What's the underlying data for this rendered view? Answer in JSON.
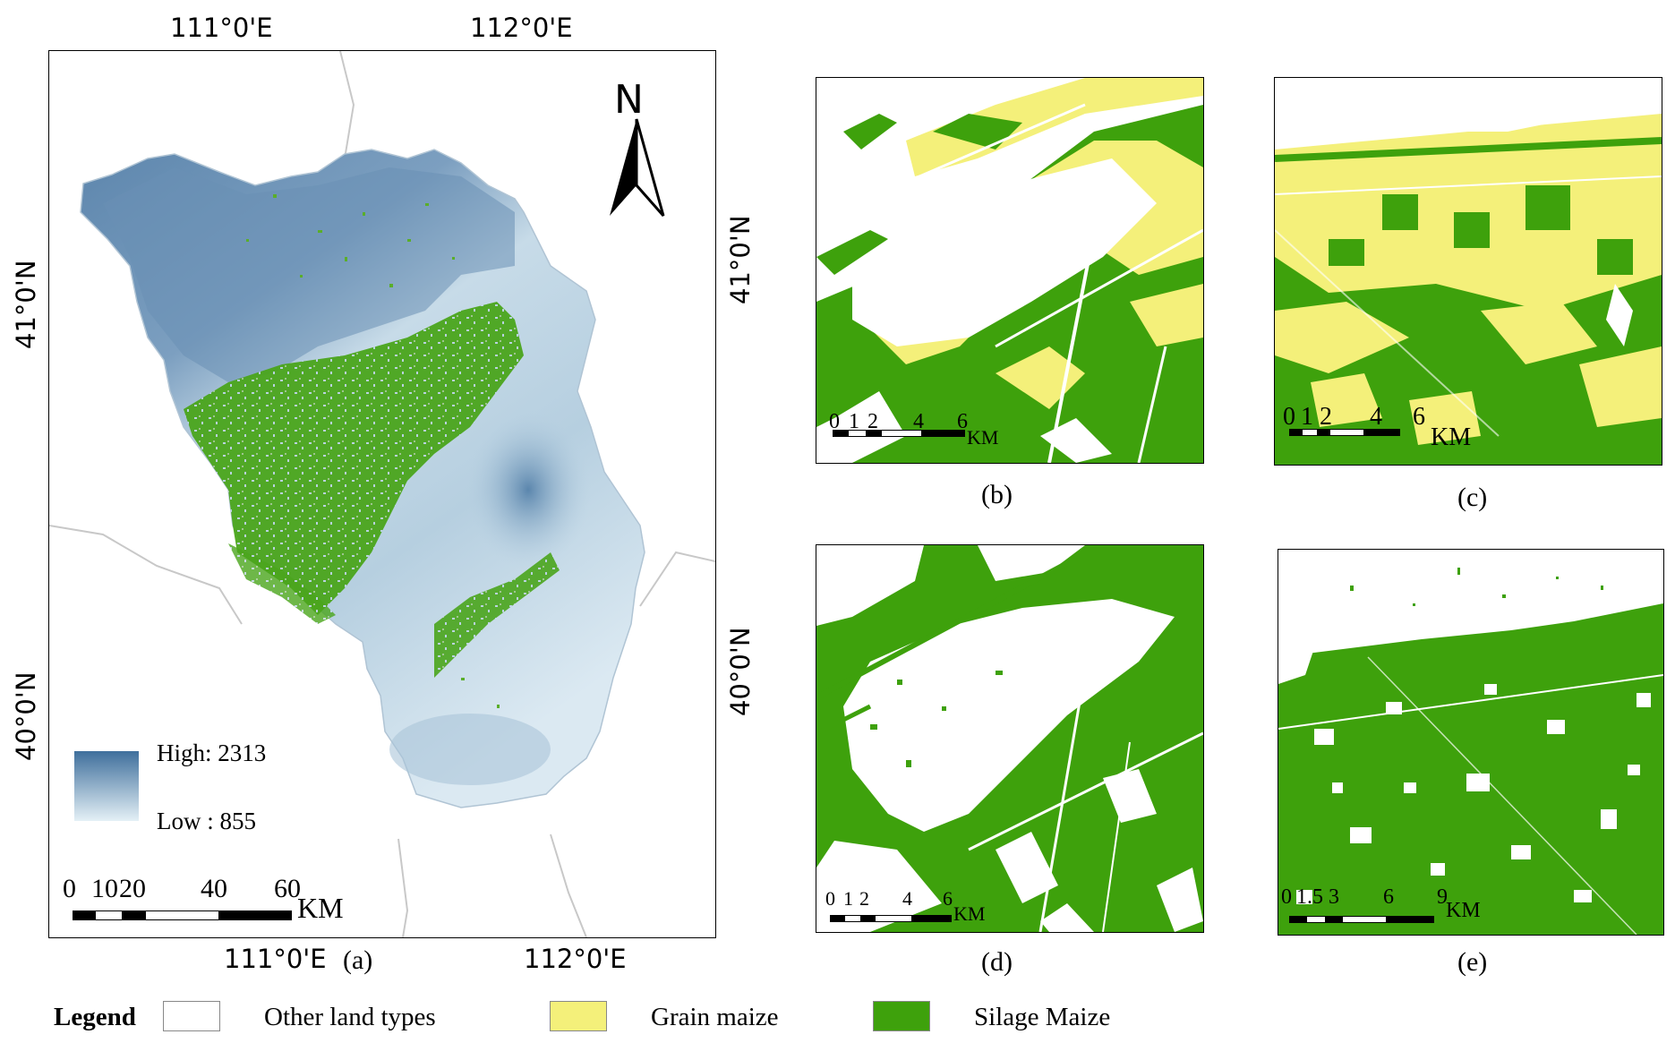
{
  "panel_a": {
    "label": "(a)",
    "lon_top": [
      "111°0'E",
      "112°0'E"
    ],
    "lon_bottom": [
      "111°0'E",
      "112°0'E"
    ],
    "lat_left": [
      "41°0'N",
      "40°0'N"
    ],
    "north": "N",
    "dem": {
      "high": "High: 2313",
      "low": "Low : 855",
      "high_color": "#3f6f9c",
      "low_color": "#e4f0f6"
    },
    "scalebar": {
      "ticks": [
        "0",
        "10",
        "20",
        "40",
        "60"
      ],
      "unit": "KM"
    }
  },
  "lat_middle": [
    "41°0'N",
    "40°0'N"
  ],
  "panels": [
    {
      "label": "(b)",
      "scale_ticks": [
        "0",
        "1",
        "2",
        "4",
        "6"
      ],
      "unit": "KM"
    },
    {
      "label": "(c)",
      "scale_ticks": [
        "0",
        "1",
        "2",
        "4",
        "6"
      ],
      "unit": "KM"
    },
    {
      "label": "(d)",
      "scale_ticks": [
        "0",
        "1",
        "2",
        "4",
        "6"
      ],
      "unit": "KM"
    },
    {
      "label": "(e)",
      "scale_ticks": [
        "0",
        "1.5",
        "3",
        "6",
        "9"
      ],
      "unit": "KM"
    }
  ],
  "legend": {
    "title": "Legend",
    "items": [
      {
        "label": "Other land types",
        "color": "#ffffff"
      },
      {
        "label": "Grain maize",
        "color": "#f4f07a"
      },
      {
        "label": "Silage Maize",
        "color": "#3ea10c"
      }
    ]
  }
}
